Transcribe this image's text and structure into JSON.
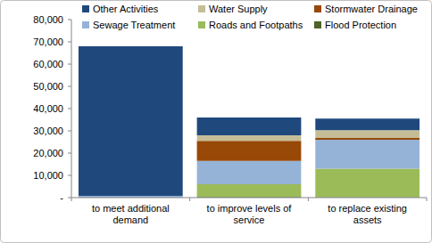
{
  "chart_data": {
    "type": "bar",
    "stacked": true,
    "grid": false,
    "legend": "top",
    "categories": [
      "to meet additional demand",
      "to improve levels of service",
      "to replace existing assets"
    ],
    "series": [
      {
        "name": "Other Activities",
        "color": "#1F497D",
        "values": [
          67200,
          8000,
          5200
        ]
      },
      {
        "name": "Water Supply",
        "color": "#C4BD97",
        "values": [
          0,
          2500,
          3500
        ]
      },
      {
        "name": "Stormwater Drainage",
        "color": "#984807",
        "values": [
          0,
          9000,
          800
        ]
      },
      {
        "name": "Sewage Treatment",
        "color": "#95B3D7",
        "values": [
          800,
          10500,
          13000
        ]
      },
      {
        "name": "Roads and Footpaths",
        "color": "#9BBB59",
        "values": [
          0,
          5700,
          12800
        ]
      },
      {
        "name": "Flood Protection",
        "color": "#4F6228",
        "values": [
          0,
          300,
          200
        ]
      }
    ],
    "ylim": [
      0,
      80000
    ],
    "yticks": [
      {
        "value": 0,
        "label": "-"
      },
      {
        "value": 10000,
        "label": "10,000"
      },
      {
        "value": 20000,
        "label": "20,000"
      },
      {
        "value": 30000,
        "label": "30,000"
      },
      {
        "value": 40000,
        "label": "40,000"
      },
      {
        "value": 50000,
        "label": "50,000"
      },
      {
        "value": 60000,
        "label": "60,000"
      },
      {
        "value": 70000,
        "label": "70,000"
      },
      {
        "value": 80000,
        "label": "80,000"
      }
    ]
  }
}
